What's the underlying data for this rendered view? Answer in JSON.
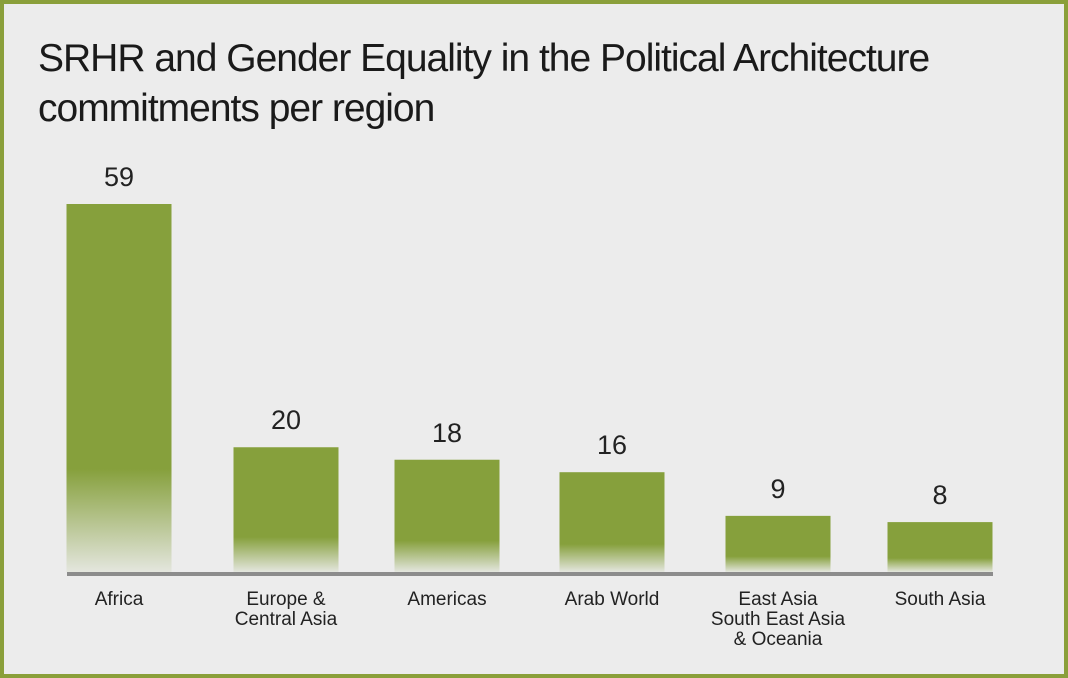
{
  "chart_data": {
    "type": "bar",
    "title": "SRHR and Gender Equality in the Political Architecture commitments per region",
    "categories": [
      "Africa",
      "Europe &\nCentral Asia",
      "Americas",
      "Arab World",
      "East Asia\nSouth East Asia\n& Oceania",
      "South Asia"
    ],
    "values": [
      59,
      20,
      18,
      16,
      9,
      8
    ],
    "color": "#86a03c"
  }
}
